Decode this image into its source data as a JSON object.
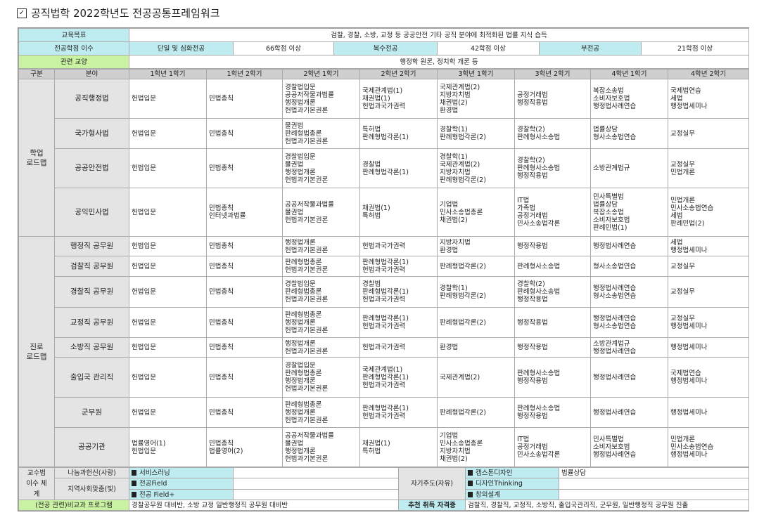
{
  "title": "공직법학 2022학년도 전공공통프레임워크",
  "top": {
    "goal_label": "교육목표",
    "goal": "검찰, 경찰, 소방, 교정 등 공공안전 기타 공직 분야에 최적화된 법률 지식 습득",
    "credit_label": "전공학점 이수",
    "single_label": "단일 및 심화전공",
    "single": "66학점 이상",
    "double_label": "복수전공",
    "double": "42학점 이상",
    "minor_label": "부전공",
    "minor": "21학점 이상",
    "liberal_label": "관련 교양",
    "liberal": "행정학 원론, 정치학 개론 등"
  },
  "header": [
    "구분",
    "분야",
    "1학년 1학기",
    "1학년 2학기",
    "2학년 1학기",
    "2학년 2학기",
    "3학년 1학기",
    "3학년 2학기",
    "4학년 1학기",
    "4학년 2학기"
  ],
  "groups": [
    {
      "label": [
        "학업",
        "로드맵"
      ],
      "rows": [
        {
          "field": "공직행정법",
          "cells": [
            [
              "헌법입문"
            ],
            [
              "민법총칙"
            ],
            [
              "경찰법입문",
              "공공저작물과법률",
              "행정법개론",
              "헌법과기본권론"
            ],
            [
              "국제관계법(1)",
              "채권법(1)",
              "헌법과국가권력"
            ],
            [
              "국제관계법(2)",
              "지방자치법",
              "채권법(2)",
              "환경법"
            ],
            [
              "공정거래법",
              "행정작용법"
            ],
            [
              "복잡소송법",
              "소비자보호법",
              "행정법사례연습"
            ],
            [
              "국제법연습",
              "세법",
              "행정법세미나"
            ]
          ]
        },
        {
          "field": "국가형사법",
          "cells": [
            [
              "헌법입문"
            ],
            [
              "민법총칙"
            ],
            [
              "물권법",
              "판례형법총론",
              "헌법과기본권론"
            ],
            [
              "특허법",
              "판례형법각론(1)"
            ],
            [
              "경찰학(1)",
              "판례형법각론(2)"
            ],
            [
              "경찰학(2)",
              "판례형사소송법"
            ],
            [
              "법률상담",
              "형사소송법연습"
            ],
            [
              "교정실무"
            ]
          ]
        },
        {
          "field": "공공안전법",
          "cells": [
            [
              "헌법입문"
            ],
            [
              "민법총칙"
            ],
            [
              "경찰법입문",
              "물권법",
              "행정법개론",
              "헌법과기본권론"
            ],
            [
              "경찰법",
              "판례형법각론(1)"
            ],
            [
              "경찰학(1)",
              "국제관계법(2)",
              "지방자치법",
              "판례형법각론(2)"
            ],
            [
              "경찰학(2)",
              "판례형사소송법",
              "행정작용법"
            ],
            [
              "소방관계법규"
            ],
            [
              "교정실무",
              "민법개론"
            ]
          ]
        },
        {
          "field": "공익민사법",
          "cells": [
            [
              "헌법입문"
            ],
            [
              "민법총칙",
              "인터넷과법률"
            ],
            [
              "공공저작물과법률",
              "물권법",
              "헌법과기본권론"
            ],
            [
              "채권법(1)",
              "특허법"
            ],
            [
              "기업법",
              "민사소송법총론",
              "채권법(2)"
            ],
            [
              "IT법",
              "가족법",
              "공정거래법",
              "민사소송법각론"
            ],
            [
              "민사특별법",
              "법률상담",
              "복잡소송법",
              "소비자보호법",
              "판례민법(1)"
            ],
            [
              "민법개론",
              "민사소송법연습",
              "세법",
              "판례민법(2)"
            ]
          ]
        }
      ]
    },
    {
      "label": [
        "진로",
        "로드맵"
      ],
      "rows": [
        {
          "field": "행정직 공무원",
          "cells": [
            [
              "헌법입문"
            ],
            [
              "민법총칙"
            ],
            [
              "행정법개론",
              "헌법과기본권론"
            ],
            [
              "헌법과국가권력"
            ],
            [
              "지방자치법",
              "환경법"
            ],
            [
              "행정작용법"
            ],
            [
              "행정법사례연습"
            ],
            [
              "세법",
              "행정법세미나"
            ]
          ]
        },
        {
          "field": "검찰직 공무원",
          "cells": [
            [
              "헌법입문"
            ],
            [
              "민법총칙"
            ],
            [
              "판례형법총론",
              "헌법과기본권론"
            ],
            [
              "판례형법각론(1)",
              "헌법과국가권력"
            ],
            [
              "판례형법각론(2)"
            ],
            [
              "판례형사소송법"
            ],
            [
              "형사소송법연습"
            ],
            [
              "교정실무"
            ]
          ]
        },
        {
          "field": "경찰직 공무원",
          "cells": [
            [
              "헌법입문"
            ],
            [
              "민법총칙"
            ],
            [
              "경찰법입문",
              "판례형법총론",
              "헌법과기본권론"
            ],
            [
              "경찰법",
              "판례형법각론(1)",
              "헌법과국가권력"
            ],
            [
              "경찰학(1)",
              "판례형법각론(2)"
            ],
            [
              "경찰학(2)",
              "판례형사소송법",
              "행정작용법"
            ],
            [
              "행정법사례연습",
              "형사소송법연습"
            ],
            [
              "교정실무"
            ]
          ]
        },
        {
          "field": "교정직 공무원",
          "cells": [
            [
              "헌법입문"
            ],
            [
              "민법총칙"
            ],
            [
              "판례형법총론",
              "행정법개론",
              "헌법과기본권론"
            ],
            [
              "판례형법각론(1)",
              "헌법과국가권력"
            ],
            [
              "판례형법각론(2)"
            ],
            [
              "행정작용법"
            ],
            [
              "행정법사례연습",
              "형사소송법연습"
            ],
            [
              "교정실무",
              "행정법세미나"
            ]
          ]
        },
        {
          "field": "소방직 공무원",
          "cells": [
            [
              "헌법입문"
            ],
            [
              "민법총칙"
            ],
            [
              "행정법개론",
              "헌법과기본권론"
            ],
            [
              "헌법과국가권력"
            ],
            [
              "환경법"
            ],
            [
              "행정작용법"
            ],
            [
              "소방관계법규",
              "행정법사례연습"
            ],
            [
              "행정법세미나"
            ]
          ]
        },
        {
          "field": "출입국 관리직",
          "cells": [
            [
              "헌법입문"
            ],
            [
              "민법총칙"
            ],
            [
              "경찰법입문",
              "판례형법총론",
              "행정법개론",
              "헌법과기본권론"
            ],
            [
              "국제관계법(1)",
              "판례형법각론(1)",
              "헌법과국가권력"
            ],
            [
              "국제관계법(2)"
            ],
            [
              "판례형사소송법",
              "행정작용법"
            ],
            [
              "행정법사례연습"
            ],
            [
              "국제법연습",
              "행정법세미나"
            ]
          ]
        },
        {
          "field": "군무원",
          "cells": [
            [
              "헌법입문"
            ],
            [
              "민법총칙"
            ],
            [
              "판례형법총론",
              "행정법개론",
              "헌법과기본권론"
            ],
            [
              "판례형법각론(1)",
              "헌법과국가권력"
            ],
            [
              "판례형법각론(2)"
            ],
            [
              "판례형사소송법",
              "행정작용법"
            ],
            [
              "행정법사례연습"
            ],
            [
              "행정법세미나"
            ]
          ]
        },
        {
          "field": "공공기관",
          "cells": [
            [
              "법률영어(1)",
              "헌법입문"
            ],
            [
              "민법총칙",
              "법률영어(2)"
            ],
            [
              "공공저작물과법률",
              "물권법",
              "행정법개론",
              "헌법과기본권론"
            ],
            [
              "채권법(1)",
              "특허법"
            ],
            [
              "기업법",
              "민사소송법총론",
              "지방자치법",
              "채권법(2)"
            ],
            [
              "IT법",
              "공정거래법",
              "민사소송법각론"
            ],
            [
              "민사특별법",
              "소비자보호법",
              "행정법사례연습"
            ],
            [
              "민법개론",
              "민사소송법연습",
              "행정법세미나"
            ]
          ]
        }
      ]
    }
  ],
  "bottom": {
    "method_label": "교수법 이수 체계",
    "sharing": "나눔과헌신(사랑)",
    "service": "서비스러닝",
    "community": "지역사회맞춤(빛)",
    "field": "전공Field",
    "field_plus": "전공 Field+",
    "self": "자기주도(자유)",
    "capstone": "캡스톤디자인",
    "capstone_value": "법률상담",
    "design": "디자인Thinking",
    "creative": "창의설계",
    "extra_label": "(전공 관련)비교과 프로그램",
    "extra": "경찰공무원 대비반, 소방 교정 일반행정직 공무원 대비반",
    "cert_label": "추천 취득 자격증",
    "cert": "검찰직, 경찰직, 교정직, 소방직, 출입국관리직, 군무원, 일반행정직 공무원 진출"
  },
  "colors": {
    "cyan": "#bfecf0",
    "green": "#c9f2a3",
    "header_gray": "#cfcfcf",
    "field_gray": "#e4e4e4"
  }
}
